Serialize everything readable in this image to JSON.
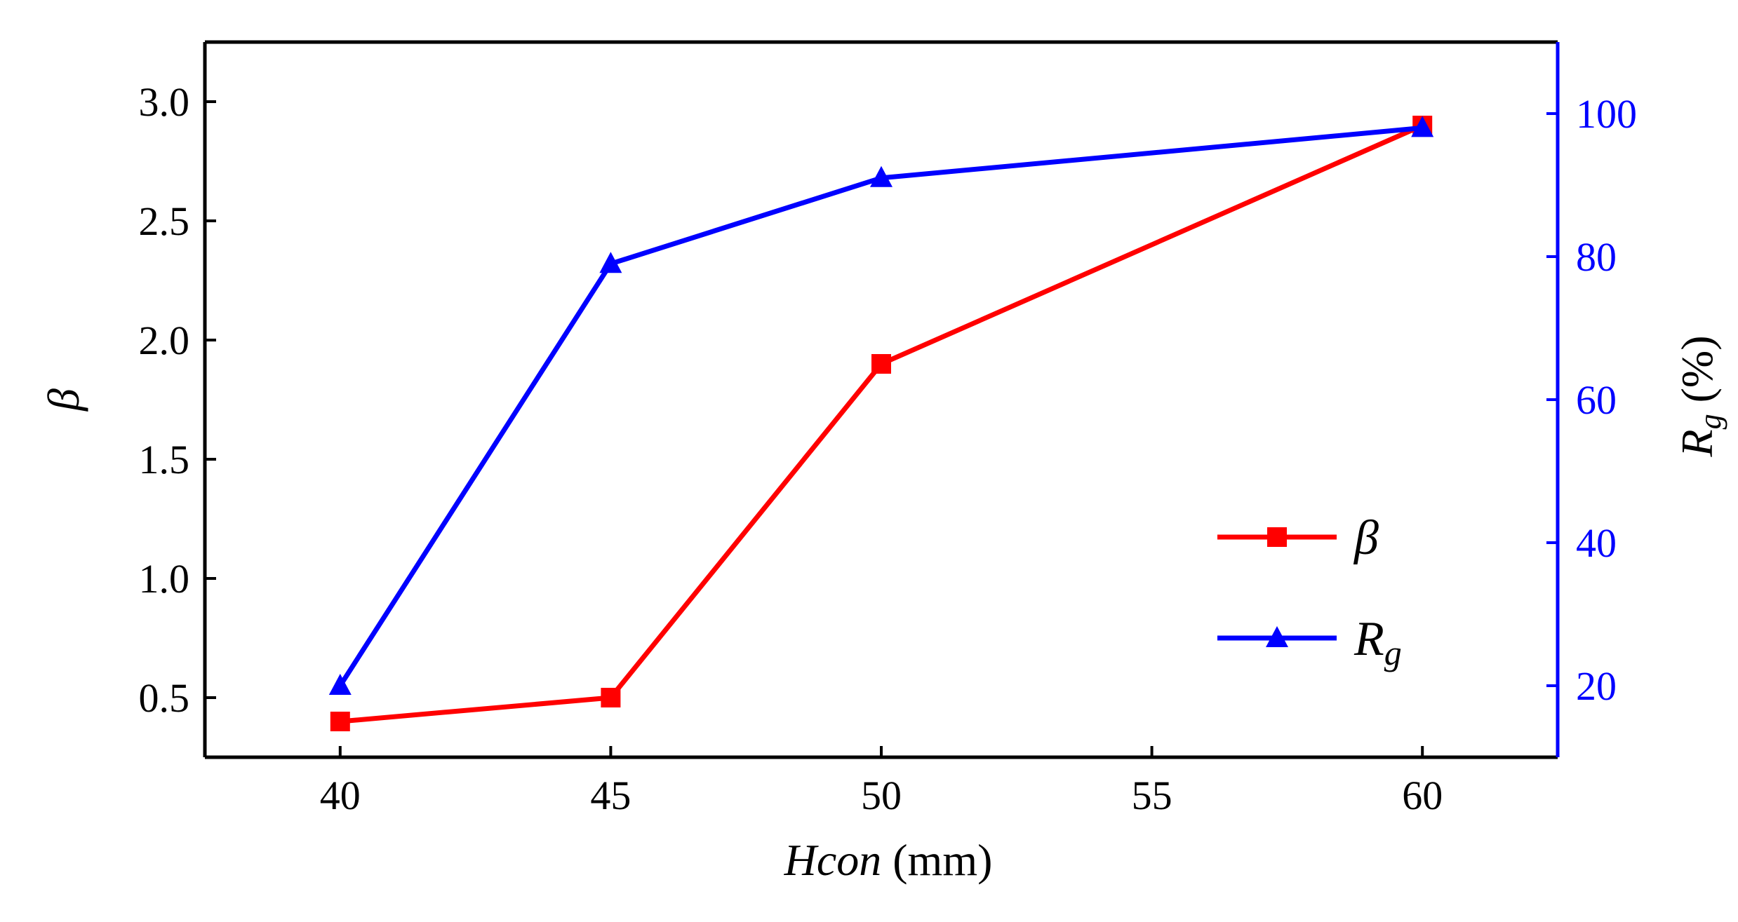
{
  "colors": {
    "beta": "#ff0000",
    "rg": "#0000ff",
    "axis": "#000000"
  },
  "chart_data": {
    "type": "line",
    "x": [
      40,
      45,
      50,
      60
    ],
    "xlim": [
      37.5,
      62.5
    ],
    "xticks": [
      40,
      45,
      50,
      55,
      60
    ],
    "xtick_labels": [
      "40",
      "45",
      "50",
      "55",
      "60"
    ],
    "xlabel": {
      "italic": "Hcon",
      "unit": " (mm)"
    },
    "ylabel_left": "β",
    "ylim_left": [
      0.25,
      3.25
    ],
    "yticks_left": [
      0.5,
      1.0,
      1.5,
      2.0,
      2.5,
      3.0
    ],
    "ytick_labels_left": [
      "0.5",
      "1.0",
      "1.5",
      "2.0",
      "2.5",
      "3.0"
    ],
    "ylabel_right": {
      "symbol": "R",
      "subscript": "g",
      "unit": " (%)"
    },
    "ylim_right": [
      10,
      110
    ],
    "yticks_right": [
      20,
      40,
      60,
      80,
      100
    ],
    "ytick_labels_right": [
      "20",
      "40",
      "60",
      "80",
      "100"
    ],
    "series": [
      {
        "name": "β",
        "axis": "left",
        "marker": "square",
        "color": "#ff0000",
        "values": [
          0.4,
          0.5,
          1.9,
          2.9
        ]
      },
      {
        "name": "Rg",
        "axis": "right",
        "marker": "triangle",
        "color": "#0000ff",
        "values": [
          20,
          79,
          91,
          98
        ]
      }
    ],
    "legend": {
      "placement": "lower-right",
      "entries": [
        {
          "symbol": "β",
          "subscript": ""
        },
        {
          "symbol": "R",
          "subscript": "g"
        }
      ]
    },
    "grid": false
  }
}
